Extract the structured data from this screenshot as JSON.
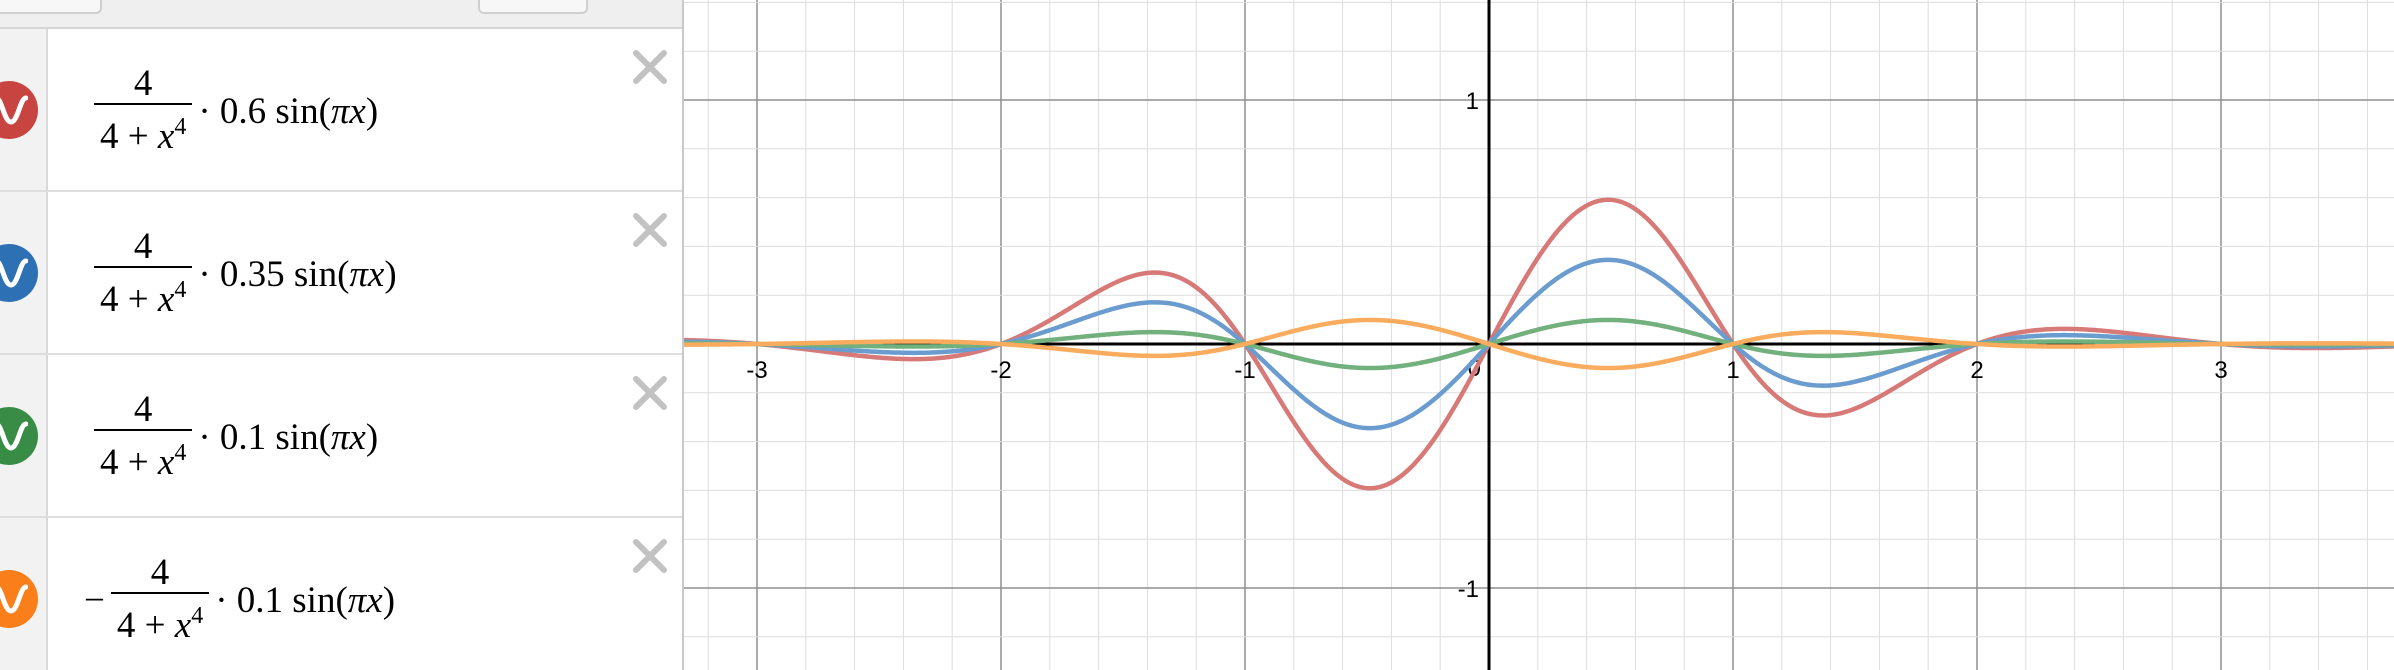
{
  "sidebar": {
    "expressions": [
      {
        "color": "#c74440",
        "negative": "",
        "numerator": "4",
        "den_base": "4 + ",
        "den_var": "x",
        "den_exp": "4",
        "factor": "· 0.6 sin",
        "arg": "πx",
        "icon": "sine-wave-icon"
      },
      {
        "color": "#2d70b3",
        "negative": "",
        "numerator": "4",
        "den_base": "4 + ",
        "den_var": "x",
        "den_exp": "4",
        "factor": "· 0.35 sin",
        "arg": "πx",
        "icon": "sine-wave-icon"
      },
      {
        "color": "#388c46",
        "negative": "",
        "numerator": "4",
        "den_base": "4 + ",
        "den_var": "x",
        "den_exp": "4",
        "factor": "· 0.1 sin",
        "arg": "πx",
        "icon": "sine-wave-icon"
      },
      {
        "color": "#fa7e19",
        "negative": "−",
        "numerator": "4",
        "den_base": "4 + ",
        "den_var": "x",
        "den_exp": "4",
        "factor": "· 0.1 sin",
        "arg": "πx",
        "icon": "sine-wave-icon"
      }
    ],
    "delete_icon": "close-x-icon"
  },
  "chart_data": {
    "type": "line",
    "xlim": [
      -3.3,
      3.7
    ],
    "ylim": [
      -1.35,
      1.4
    ],
    "grid": true,
    "x_ticks": [
      "-3",
      "-2",
      "-1",
      "1",
      "2",
      "3"
    ],
    "y_ticks": [
      "1",
      "-1"
    ],
    "origin_label": "0",
    "series": [
      {
        "amplitude": 0.6,
        "sign": 1,
        "color": "#d77a77"
      },
      {
        "amplitude": 0.35,
        "sign": 1,
        "color": "#6a9ccf"
      },
      {
        "amplitude": 0.1,
        "sign": 1,
        "color": "#72b07e"
      },
      {
        "amplitude": 0.1,
        "sign": -1,
        "color": "#f9ab5e"
      }
    ]
  }
}
